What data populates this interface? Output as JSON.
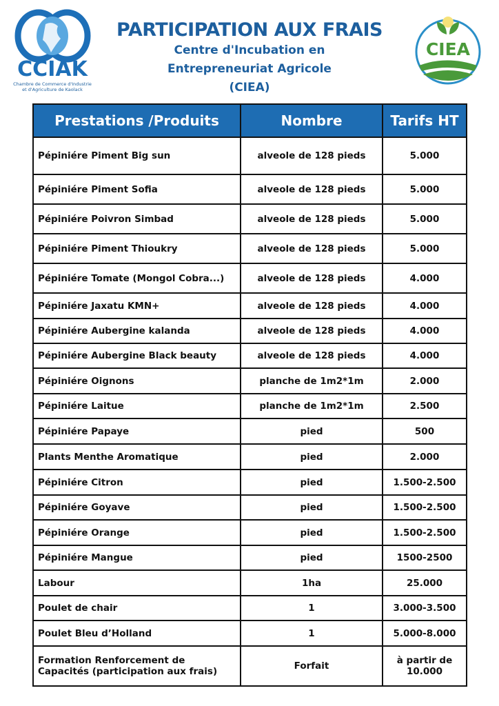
{
  "header": {
    "title": "PARTICIPATION AUX FRAIS",
    "subtitle_lines": [
      "Centre d'Incubation en",
      "Entrepreneuriat Agricole",
      "(CIEA)"
    ]
  },
  "logo_left": {
    "name": "CCIAK",
    "caption_lines": [
      "Chambre de Commerce d'Industrie",
      "et d'Agriculture de Kaolack"
    ]
  },
  "logo_right": {
    "name": "CIEA",
    "caption": "Centre d'Incubation en Entrepreneuriat Agricole"
  },
  "colors": {
    "header_bg": "#1e6db3",
    "title": "#1d5f9e",
    "ciea_green": "#4a9a3a"
  },
  "table": {
    "columns": [
      "Prestations /Produits",
      "Nombre",
      "Tarifs HT"
    ],
    "rows": [
      [
        "Pépiniére Piment Big sun",
        "alveole de 128 pieds",
        "5.000"
      ],
      [
        "Pépiniére Piment Sofia",
        "alveole de 128 pieds",
        "5.000"
      ],
      [
        "Pépiniére Poivron Simbad",
        "alveole de 128 pieds",
        "5.000"
      ],
      [
        "Pépiniére Piment Thioukry",
        "alveole de 128 pieds",
        "5.000"
      ],
      [
        "Pépiniére Tomate (Mongol Cobra...)",
        "alveole de 128 pieds",
        "4.000"
      ],
      [
        "Pépiniére Jaxatu KMN+",
        "alveole de 128 pieds",
        "4.000"
      ],
      [
        "Pépiniére Aubergine kalanda",
        "alveole de 128 pieds",
        "4.000"
      ],
      [
        "Pépiniére Aubergine Black beauty",
        "alveole de 128 pieds",
        "4.000"
      ],
      [
        "Pépiniére Oignons",
        "planche de 1m2*1m",
        "2.000"
      ],
      [
        "Pépiniére Laitue",
        "planche de 1m2*1m",
        "2.500"
      ],
      [
        "Pépiniére Papaye",
        "pied",
        "500"
      ],
      [
        "Plants Menthe Aromatique",
        "pied",
        "2.000"
      ],
      [
        "Pépiniére Citron",
        "pied",
        "1.500-2.500"
      ],
      [
        "Pépiniére Goyave",
        "pied",
        "1.500-2.500"
      ],
      [
        "Pépiniére Orange",
        "pied",
        "1.500-2.500"
      ],
      [
        "Pépiniére Mangue",
        "pied",
        "1500-2500"
      ],
      [
        "Labour",
        "1ha",
        "25.000"
      ],
      [
        "Poulet de chair",
        "1",
        "3.000-3.500"
      ],
      [
        "Poulet Bleu d’Holland",
        "1",
        "5.000-8.000"
      ],
      [
        "Formation Renforcement de Capacités (participation aux frais)",
        "Forfait",
        "à partir de 10.000"
      ]
    ]
  }
}
